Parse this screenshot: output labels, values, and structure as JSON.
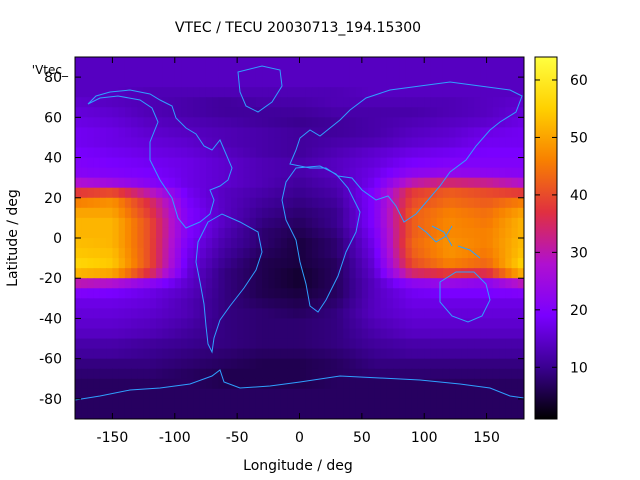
{
  "chart_data": {
    "type": "heatmap",
    "title": "VTEC / TECU 20030713_194.15300",
    "xlabel": "Longitude / deg",
    "ylabel": "Latitude / deg",
    "key_label": "'Vtec_",
    "xlim": [
      -180,
      180
    ],
    "ylim": [
      -90,
      90
    ],
    "x_ticks": [
      -150,
      -100,
      -50,
      0,
      50,
      100,
      150
    ],
    "y_ticks": [
      -80,
      -60,
      -40,
      -20,
      0,
      20,
      40,
      60,
      80
    ],
    "colorbar": {
      "range": [
        1,
        64
      ],
      "ticks": [
        10,
        20,
        30,
        40,
        50,
        60
      ],
      "palette": [
        "#000000",
        "#3a0090",
        "#7a00ff",
        "#b010d0",
        "#e03040",
        "#f88000",
        "#ffd000",
        "#ffff40"
      ]
    },
    "map_line_color": "#2fa0ff",
    "lon_centers": [
      -180,
      -150,
      -120,
      -90,
      -60,
      -30,
      0,
      30,
      60,
      90,
      120,
      150,
      180
    ],
    "lat_centers": [
      87.5,
      82.5,
      77.5,
      72.5,
      67.5,
      62.5,
      57.5,
      52.5,
      47.5,
      42.5,
      37.5,
      32.5,
      27.5,
      22.5,
      17.5,
      12.5,
      7.5,
      2.5,
      -2.5,
      -7.5,
      -12.5,
      -17.5,
      -22.5,
      -27.5,
      -32.5,
      -37.5,
      -42.5,
      -47.5,
      -52.5,
      -57.5,
      -62.5,
      -67.5,
      -72.5,
      -77.5,
      -82.5,
      -87.5
    ],
    "values": [
      [
        14,
        14,
        14,
        14,
        14,
        14,
        14,
        14,
        14,
        14,
        14,
        14,
        14
      ],
      [
        14,
        14,
        14,
        14,
        14,
        14,
        14,
        14,
        14,
        14,
        14,
        14,
        14
      ],
      [
        14,
        14,
        14,
        14,
        14,
        14,
        14,
        14,
        14,
        14,
        14,
        14,
        14
      ],
      [
        14,
        14,
        13,
        13,
        13,
        13,
        13,
        13,
        14,
        14,
        14,
        14,
        14
      ],
      [
        15,
        14,
        13,
        12,
        11,
        12,
        12,
        13,
        13,
        13,
        13,
        14,
        15
      ],
      [
        16,
        15,
        13,
        12,
        11,
        11,
        11,
        12,
        12,
        12,
        13,
        14,
        16
      ],
      [
        17,
        16,
        14,
        13,
        12,
        11,
        10,
        11,
        12,
        13,
        14,
        15,
        17
      ],
      [
        18,
        17,
        15,
        14,
        13,
        12,
        11,
        11,
        12,
        14,
        15,
        17,
        18
      ],
      [
        18,
        17,
        16,
        15,
        13,
        12,
        11,
        12,
        13,
        15,
        16,
        18,
        18
      ],
      [
        19,
        18,
        17,
        16,
        14,
        12,
        11,
        13,
        15,
        17,
        18,
        19,
        19
      ],
      [
        20,
        19,
        18,
        17,
        15,
        13,
        12,
        14,
        16,
        19,
        20,
        20,
        20
      ],
      [
        21,
        20,
        19,
        17,
        15,
        13,
        12,
        14,
        17,
        22,
        23,
        22,
        21
      ],
      [
        28,
        25,
        21,
        17,
        15,
        13,
        11,
        13,
        18,
        30,
        34,
        32,
        28
      ],
      [
        38,
        40,
        30,
        18,
        14,
        12,
        10,
        12,
        20,
        38,
        42,
        40,
        38
      ],
      [
        46,
        48,
        36,
        19,
        14,
        11,
        9,
        11,
        20,
        40,
        44,
        42,
        46
      ],
      [
        50,
        50,
        38,
        20,
        14,
        10,
        8,
        10,
        20,
        42,
        46,
        44,
        50
      ],
      [
        52,
        52,
        40,
        20,
        14,
        9,
        7,
        10,
        20,
        42,
        47,
        45,
        52
      ],
      [
        52,
        52,
        40,
        20,
        13,
        8,
        6,
        9,
        19,
        42,
        47,
        46,
        52
      ],
      [
        53,
        52,
        40,
        19,
        12,
        8,
        5,
        8,
        18,
        43,
        48,
        46,
        53
      ],
      [
        54,
        53,
        40,
        18,
        11,
        7,
        5,
        8,
        17,
        42,
        48,
        45,
        54
      ],
      [
        56,
        54,
        40,
        17,
        10,
        6,
        5,
        7,
        16,
        40,
        46,
        43,
        56
      ],
      [
        52,
        50,
        36,
        16,
        9,
        6,
        4,
        7,
        15,
        34,
        38,
        36,
        52
      ],
      [
        30,
        28,
        22,
        15,
        9,
        6,
        4,
        7,
        14,
        22,
        24,
        22,
        30
      ],
      [
        20,
        19,
        17,
        14,
        9,
        6,
        5,
        7,
        14,
        18,
        19,
        19,
        20
      ],
      [
        17,
        17,
        16,
        13,
        9,
        7,
        6,
        8,
        14,
        17,
        17,
        17,
        17
      ],
      [
        16,
        16,
        15,
        13,
        9,
        8,
        7,
        9,
        14,
        16,
        16,
        16,
        16
      ],
      [
        15,
        15,
        14,
        12,
        9,
        8,
        8,
        9,
        13,
        15,
        15,
        15,
        15
      ],
      [
        14,
        14,
        13,
        11,
        9,
        8,
        8,
        9,
        12,
        14,
        14,
        14,
        14
      ],
      [
        12,
        12,
        11,
        10,
        9,
        8,
        8,
        9,
        11,
        12,
        12,
        12,
        12
      ],
      [
        11,
        11,
        10,
        9,
        8,
        7,
        7,
        8,
        10,
        11,
        11,
        11,
        11
      ],
      [
        9,
        9,
        9,
        8,
        7,
        6,
        6,
        7,
        9,
        9,
        9,
        9,
        9
      ],
      [
        8,
        8,
        8,
        7,
        6,
        6,
        6,
        7,
        8,
        8,
        8,
        8,
        8
      ],
      [
        7,
        7,
        7,
        7,
        6,
        6,
        6,
        7,
        7,
        7,
        7,
        7,
        7
      ],
      [
        7,
        7,
        7,
        7,
        7,
        7,
        7,
        7,
        7,
        7,
        7,
        7,
        7
      ],
      [
        7,
        7,
        7,
        7,
        7,
        7,
        7,
        7,
        7,
        7,
        7,
        7,
        7
      ],
      [
        7,
        7,
        7,
        7,
        7,
        7,
        7,
        7,
        7,
        7,
        7,
        7,
        7
      ]
    ]
  }
}
